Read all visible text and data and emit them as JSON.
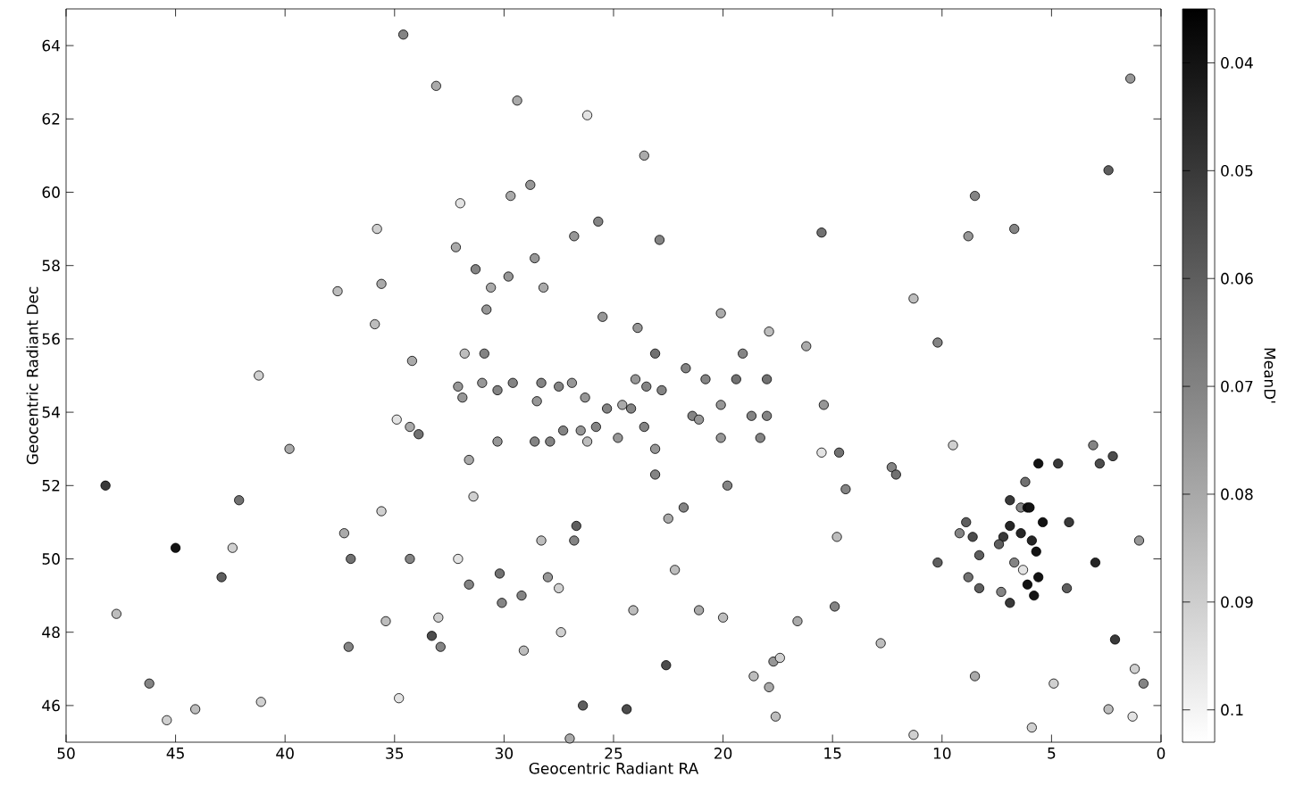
{
  "chart_data": {
    "type": "scatter",
    "xlabel": "Geocentric Radiant RA",
    "ylabel": "Geocentric Radiant Dec",
    "clabel": "MeanD'",
    "xlim": [
      50,
      0
    ],
    "xticks": [
      50,
      45,
      40,
      35,
      30,
      25,
      20,
      15,
      10,
      5,
      0
    ],
    "ylim": [
      45,
      65
    ],
    "yticks": [
      46,
      48,
      50,
      52,
      54,
      56,
      58,
      60,
      62,
      64
    ],
    "clim": [
      0.035,
      0.103
    ],
    "cticks": [
      0.04,
      0.05,
      0.06,
      0.07,
      0.08,
      0.09,
      0.1
    ],
    "marker": "circle",
    "x": [
      48.2,
      47.7,
      45,
      46.2,
      45.4,
      44.1,
      42.9,
      41.1,
      41.2,
      42.1,
      42.4,
      39.8,
      37.6,
      37.3,
      37.0,
      37.1,
      35.8,
      35.9,
      35.6,
      35.6,
      34.9,
      35.4,
      34.8,
      34.3,
      34.2,
      34.3,
      33.9,
      33.3,
      32.9,
      33.0,
      34.6,
      33.1,
      32.0,
      32.2,
      31.8,
      32.1,
      31.9,
      31.6,
      31.3,
      31.4,
      32.1,
      31.6,
      31.0,
      30.9,
      30.8,
      30.6,
      30.3,
      30.3,
      30.2,
      30.1,
      29.8,
      29.7,
      29.6,
      29.4,
      29.2,
      29.1,
      28.8,
      28.6,
      28.6,
      28.5,
      28.3,
      28.2,
      28.0,
      28.3,
      27.5,
      27.4,
      27.0,
      27.9,
      27.5,
      27.3,
      26.9,
      26.8,
      26.7,
      26.8,
      26.5,
      26.2,
      26.3,
      26.4,
      26.2,
      25.8,
      25.7,
      25.5,
      25.3,
      24.8,
      24.6,
      24.2,
      24.4,
      24.0,
      24.1,
      23.9,
      23.6,
      23.5,
      23.6,
      23.1,
      23.1,
      23.1,
      22.9,
      22.8,
      22.5,
      22.6,
      22.2,
      21.7,
      21.8,
      21.4,
      21.1,
      21.1,
      20.8,
      20.1,
      20.1,
      20.1,
      19.8,
      20.0,
      19.4,
      19.1,
      18.7,
      18.3,
      18.0,
      18.0,
      17.9,
      17.7,
      17.9,
      17.6,
      18.6,
      16.6,
      16.2,
      17.4,
      15.5,
      15.4,
      15.5,
      14.7,
      14.4,
      14.9,
      14.8,
      12.3,
      12.1,
      12.8,
      11.3,
      11.3,
      10.2,
      10.2,
      9.5,
      9.2,
      8.8,
      8.8,
      8.5,
      8.5,
      6.7,
      6.2,
      4.7,
      4.2,
      3.1,
      2.8,
      2.2,
      2.4,
      1.4,
      1.0,
      2.1,
      1.2,
      0.8,
      1.3,
      2.4,
      4.9,
      4.3,
      3.0,
      5.9,
      8.9,
      8.6,
      8.3,
      8.3,
      7.2,
      7.3,
      6.9,
      6.9,
      6.9,
      6.7,
      6.4,
      6.4,
      6.1,
      6.1,
      6.0,
      5.9,
      5.8,
      5.7,
      5.6,
      5.4,
      5.6,
      6.3,
      7.4
    ],
    "values": [
      52.0,
      48.5,
      50.3,
      46.6,
      45.6,
      45.9,
      49.5,
      46.1,
      55.0,
      51.6,
      50.3,
      53.0,
      57.3,
      50.7,
      50.0,
      47.6,
      59.0,
      56.4,
      57.5,
      51.3,
      53.8,
      48.3,
      46.2,
      50.0,
      55.4,
      53.6,
      53.4,
      47.9,
      47.6,
      48.4,
      64.3,
      62.9,
      59.7,
      58.5,
      55.6,
      54.7,
      54.4,
      52.7,
      57.9,
      51.7,
      50.0,
      49.3,
      54.8,
      55.6,
      56.8,
      57.4,
      54.6,
      53.2,
      49.6,
      48.8,
      57.7,
      59.9,
      54.8,
      62.5,
      49.0,
      47.5,
      60.2,
      58.2,
      53.2,
      54.3,
      54.8,
      57.4,
      49.5,
      50.5,
      49.2,
      48.0,
      45.1,
      53.2,
      54.7,
      53.5,
      54.8,
      58.8,
      50.9,
      50.5,
      53.5,
      53.2,
      54.4,
      46.0,
      62.1,
      53.6,
      59.2,
      56.6,
      54.1,
      53.3,
      54.2,
      54.1,
      45.9,
      54.9,
      48.6,
      56.3,
      61.0,
      54.7,
      53.6,
      55.6,
      53.0,
      52.3,
      58.7,
      54.6,
      51.1,
      47.1,
      49.7,
      55.2,
      51.4,
      53.9,
      53.8,
      48.6,
      54.9,
      56.7,
      54.2,
      53.3,
      52.0,
      48.4,
      54.9,
      55.6,
      53.9,
      53.3,
      53.9,
      54.9,
      56.2,
      47.2,
      46.5,
      45.7,
      46.8,
      48.3,
      55.8,
      47.3,
      58.9,
      54.2,
      52.9,
      52.9,
      51.9,
      48.7,
      50.6,
      52.5,
      52.3,
      47.7,
      57.1,
      45.2,
      55.9,
      49.9,
      53.1,
      50.7,
      49.5,
      58.8,
      59.9,
      46.8,
      59.0,
      52.1,
      52.6,
      51.0,
      53.1,
      52.6,
      52.8,
      60.6,
      63.1,
      50.5,
      47.8,
      47.0,
      46.6,
      45.7,
      45.9,
      46.6,
      49.2,
      49.9,
      45.4,
      51.0,
      50.6,
      50.1,
      49.2,
      50.6,
      49.1,
      51.6,
      50.9,
      48.8,
      49.9,
      51.4,
      50.7,
      51.4,
      49.3,
      51.4,
      50.5,
      49.0,
      50.2,
      49.5,
      51.0,
      52.6,
      49.7,
      50.4
    ],
    "cvalues": [
      0.05,
      0.085,
      0.04,
      0.07,
      0.09,
      0.085,
      0.06,
      0.09,
      0.09,
      0.065,
      0.09,
      0.08,
      0.085,
      0.08,
      0.065,
      0.07,
      0.09,
      0.085,
      0.08,
      0.09,
      0.095,
      0.085,
      0.095,
      0.07,
      0.08,
      0.08,
      0.065,
      0.055,
      0.07,
      0.09,
      0.07,
      0.08,
      0.095,
      0.08,
      0.085,
      0.075,
      0.075,
      0.08,
      0.07,
      0.09,
      0.095,
      0.07,
      0.075,
      0.07,
      0.075,
      0.08,
      0.07,
      0.075,
      0.065,
      0.07,
      0.075,
      0.08,
      0.07,
      0.08,
      0.07,
      0.085,
      0.075,
      0.075,
      0.07,
      0.075,
      0.07,
      0.08,
      0.075,
      0.085,
      0.09,
      0.09,
      0.08,
      0.07,
      0.07,
      0.07,
      0.075,
      0.075,
      0.06,
      0.07,
      0.075,
      0.085,
      0.075,
      0.06,
      0.095,
      0.07,
      0.07,
      0.075,
      0.07,
      0.075,
      0.08,
      0.07,
      0.055,
      0.075,
      0.085,
      0.075,
      0.08,
      0.07,
      0.07,
      0.065,
      0.075,
      0.07,
      0.07,
      0.07,
      0.08,
      0.055,
      0.085,
      0.07,
      0.07,
      0.07,
      0.075,
      0.08,
      0.07,
      0.08,
      0.075,
      0.075,
      0.07,
      0.085,
      0.065,
      0.07,
      0.07,
      0.07,
      0.07,
      0.065,
      0.085,
      0.075,
      0.08,
      0.085,
      0.085,
      0.08,
      0.08,
      0.09,
      0.065,
      0.075,
      0.095,
      0.065,
      0.07,
      0.07,
      0.085,
      0.07,
      0.065,
      0.085,
      0.085,
      0.09,
      0.07,
      0.06,
      0.09,
      0.07,
      0.065,
      0.075,
      0.07,
      0.08,
      0.07,
      0.065,
      0.05,
      0.05,
      0.07,
      0.055,
      0.055,
      0.06,
      0.075,
      0.075,
      0.05,
      0.09,
      0.07,
      0.095,
      0.085,
      0.09,
      0.06,
      0.045,
      0.09,
      0.06,
      0.055,
      0.06,
      0.06,
      0.05,
      0.07,
      0.05,
      0.045,
      0.05,
      0.07,
      0.07,
      0.045,
      0.04,
      0.04,
      0.04,
      0.045,
      0.04,
      0.04,
      0.04,
      0.04,
      0.04,
      0.095,
      0.06
    ]
  }
}
